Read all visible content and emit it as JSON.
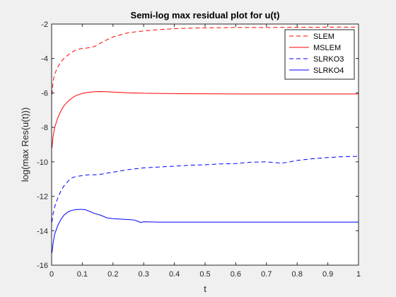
{
  "chart_data": {
    "type": "line",
    "title": "Semi-log max residual plot for u(t)",
    "xlabel": "t",
    "ylabel": "log(max Res(u(t)))",
    "xlim": [
      0,
      1
    ],
    "ylim": [
      -16,
      -2
    ],
    "xticks": [
      "0",
      "0.1",
      "0.2",
      "0.3",
      "0.4",
      "0.5",
      "0.6",
      "0.7",
      "0.8",
      "0.9",
      "1"
    ],
    "yticks": [
      "-16",
      "-14",
      "-12",
      "-10",
      "-8",
      "-6",
      "-4",
      "-2"
    ],
    "grid": false,
    "legend_position": "top-right",
    "series": [
      {
        "name": "SLEM",
        "color": "#ff0000",
        "dash": "dashed",
        "x": [
          0.001,
          0.005,
          0.01,
          0.02,
          0.03,
          0.04,
          0.05,
          0.06,
          0.07,
          0.08,
          0.09,
          0.1,
          0.12,
          0.14,
          0.15,
          0.17,
          0.2,
          0.25,
          0.3,
          0.35,
          0.4,
          0.45,
          0.5,
          0.6,
          0.7,
          0.8,
          0.9,
          1.0
        ],
        "y": [
          -6.1,
          -5.3,
          -4.9,
          -4.5,
          -4.2,
          -4.0,
          -3.85,
          -3.7,
          -3.6,
          -3.5,
          -3.45,
          -3.42,
          -3.38,
          -3.3,
          -3.2,
          -3.0,
          -2.75,
          -2.5,
          -2.4,
          -2.32,
          -2.27,
          -2.24,
          -2.22,
          -2.2,
          -2.2,
          -2.19,
          -2.18,
          -2.18
        ]
      },
      {
        "name": "MSLEM",
        "color": "#ff0000",
        "dash": "solid",
        "x": [
          0.001,
          0.005,
          0.01,
          0.02,
          0.03,
          0.04,
          0.05,
          0.06,
          0.07,
          0.08,
          0.1,
          0.12,
          0.14,
          0.16,
          0.18,
          0.2,
          0.25,
          0.3,
          0.4,
          0.5,
          0.6,
          0.7,
          0.8,
          0.9,
          1.0
        ],
        "y": [
          -9.2,
          -8.5,
          -8.0,
          -7.45,
          -7.05,
          -6.75,
          -6.55,
          -6.38,
          -6.25,
          -6.15,
          -6.03,
          -5.96,
          -5.93,
          -5.92,
          -5.93,
          -5.95,
          -5.99,
          -6.02,
          -6.04,
          -6.05,
          -6.06,
          -6.06,
          -6.06,
          -6.06,
          -6.06
        ]
      },
      {
        "name": "SLRKO3",
        "color": "#0000ff",
        "dash": "dashed",
        "x": [
          0.001,
          0.005,
          0.01,
          0.02,
          0.03,
          0.04,
          0.05,
          0.06,
          0.07,
          0.08,
          0.1,
          0.12,
          0.15,
          0.2,
          0.25,
          0.3,
          0.35,
          0.4,
          0.45,
          0.5,
          0.55,
          0.6,
          0.65,
          0.7,
          0.75,
          0.8,
          0.85,
          0.9,
          0.95,
          1.0
        ],
        "y": [
          -13.5,
          -13.0,
          -12.6,
          -12.1,
          -11.7,
          -11.4,
          -11.2,
          -11.0,
          -10.9,
          -10.85,
          -10.8,
          -10.75,
          -10.75,
          -10.6,
          -10.45,
          -10.35,
          -10.3,
          -10.25,
          -10.2,
          -10.17,
          -10.12,
          -10.1,
          -10.02,
          -10.0,
          -10.08,
          -9.92,
          -9.82,
          -9.75,
          -9.7,
          -9.68
        ]
      },
      {
        "name": "SLRKO4",
        "color": "#0000ff",
        "dash": "solid",
        "x": [
          0.001,
          0.005,
          0.01,
          0.02,
          0.03,
          0.04,
          0.05,
          0.06,
          0.07,
          0.08,
          0.09,
          0.1,
          0.11,
          0.12,
          0.14,
          0.16,
          0.18,
          0.2,
          0.25,
          0.27,
          0.28,
          0.29,
          0.3,
          0.35,
          0.4,
          0.5,
          0.6,
          0.7,
          0.8,
          0.9,
          1.0
        ],
        "y": [
          -15.3,
          -14.7,
          -14.2,
          -13.7,
          -13.35,
          -13.1,
          -12.95,
          -12.85,
          -12.8,
          -12.77,
          -12.76,
          -12.76,
          -12.78,
          -12.85,
          -13.0,
          -13.1,
          -13.25,
          -13.3,
          -13.35,
          -13.38,
          -13.45,
          -13.52,
          -13.48,
          -13.5,
          -13.5,
          -13.5,
          -13.5,
          -13.5,
          -13.5,
          -13.5,
          -13.5
        ]
      }
    ]
  }
}
